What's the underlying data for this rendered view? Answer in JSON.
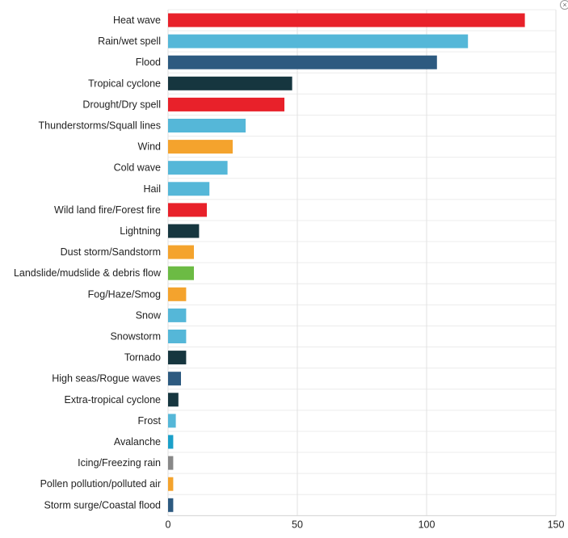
{
  "chart_data": {
    "type": "bar",
    "orientation": "horizontal",
    "categories": [
      "Heat wave",
      "Rain/wet spell",
      "Flood",
      "Tropical cyclone",
      "Drought/Dry spell",
      "Thunderstorms/Squall lines",
      "Wind",
      "Cold wave",
      "Hail",
      "Wild land fire/Forest fire",
      "Lightning",
      "Dust storm/Sandstorm",
      "Landslide/mudslide & debris flow",
      "Fog/Haze/Smog",
      "Snow",
      "Snowstorm",
      "Tornado",
      "High seas/Rogue waves",
      "Extra-tropical cyclone",
      "Frost",
      "Avalanche",
      "Icing/Freezing rain",
      "Pollen pollution/polluted air",
      "Storm surge/Coastal flood"
    ],
    "values": [
      138,
      116,
      104,
      48,
      45,
      30,
      25,
      23,
      16,
      15,
      12,
      10,
      10,
      7,
      7,
      7,
      7,
      5,
      4,
      3,
      2,
      2,
      2,
      2
    ],
    "colors": [
      "#e8212a",
      "#55b7d8",
      "#2d5a80",
      "#16363f",
      "#e8212a",
      "#55b7d8",
      "#f4a32d",
      "#55b7d8",
      "#55b7d8",
      "#e8212a",
      "#16363f",
      "#f4a32d",
      "#6cbb44",
      "#f4a32d",
      "#55b7d8",
      "#55b7d8",
      "#16363f",
      "#2d5a80",
      "#16363f",
      "#55b7d8",
      "#1ba0c9",
      "#888888",
      "#f4a32d",
      "#2d5a80"
    ],
    "xlim": [
      0,
      150
    ],
    "xticks": [
      0,
      50,
      100,
      150
    ],
    "title": "",
    "xlabel": "",
    "ylabel": "",
    "grid": true
  },
  "ui": {
    "corner_icon": "close-icon",
    "corner_glyph": "×"
  }
}
